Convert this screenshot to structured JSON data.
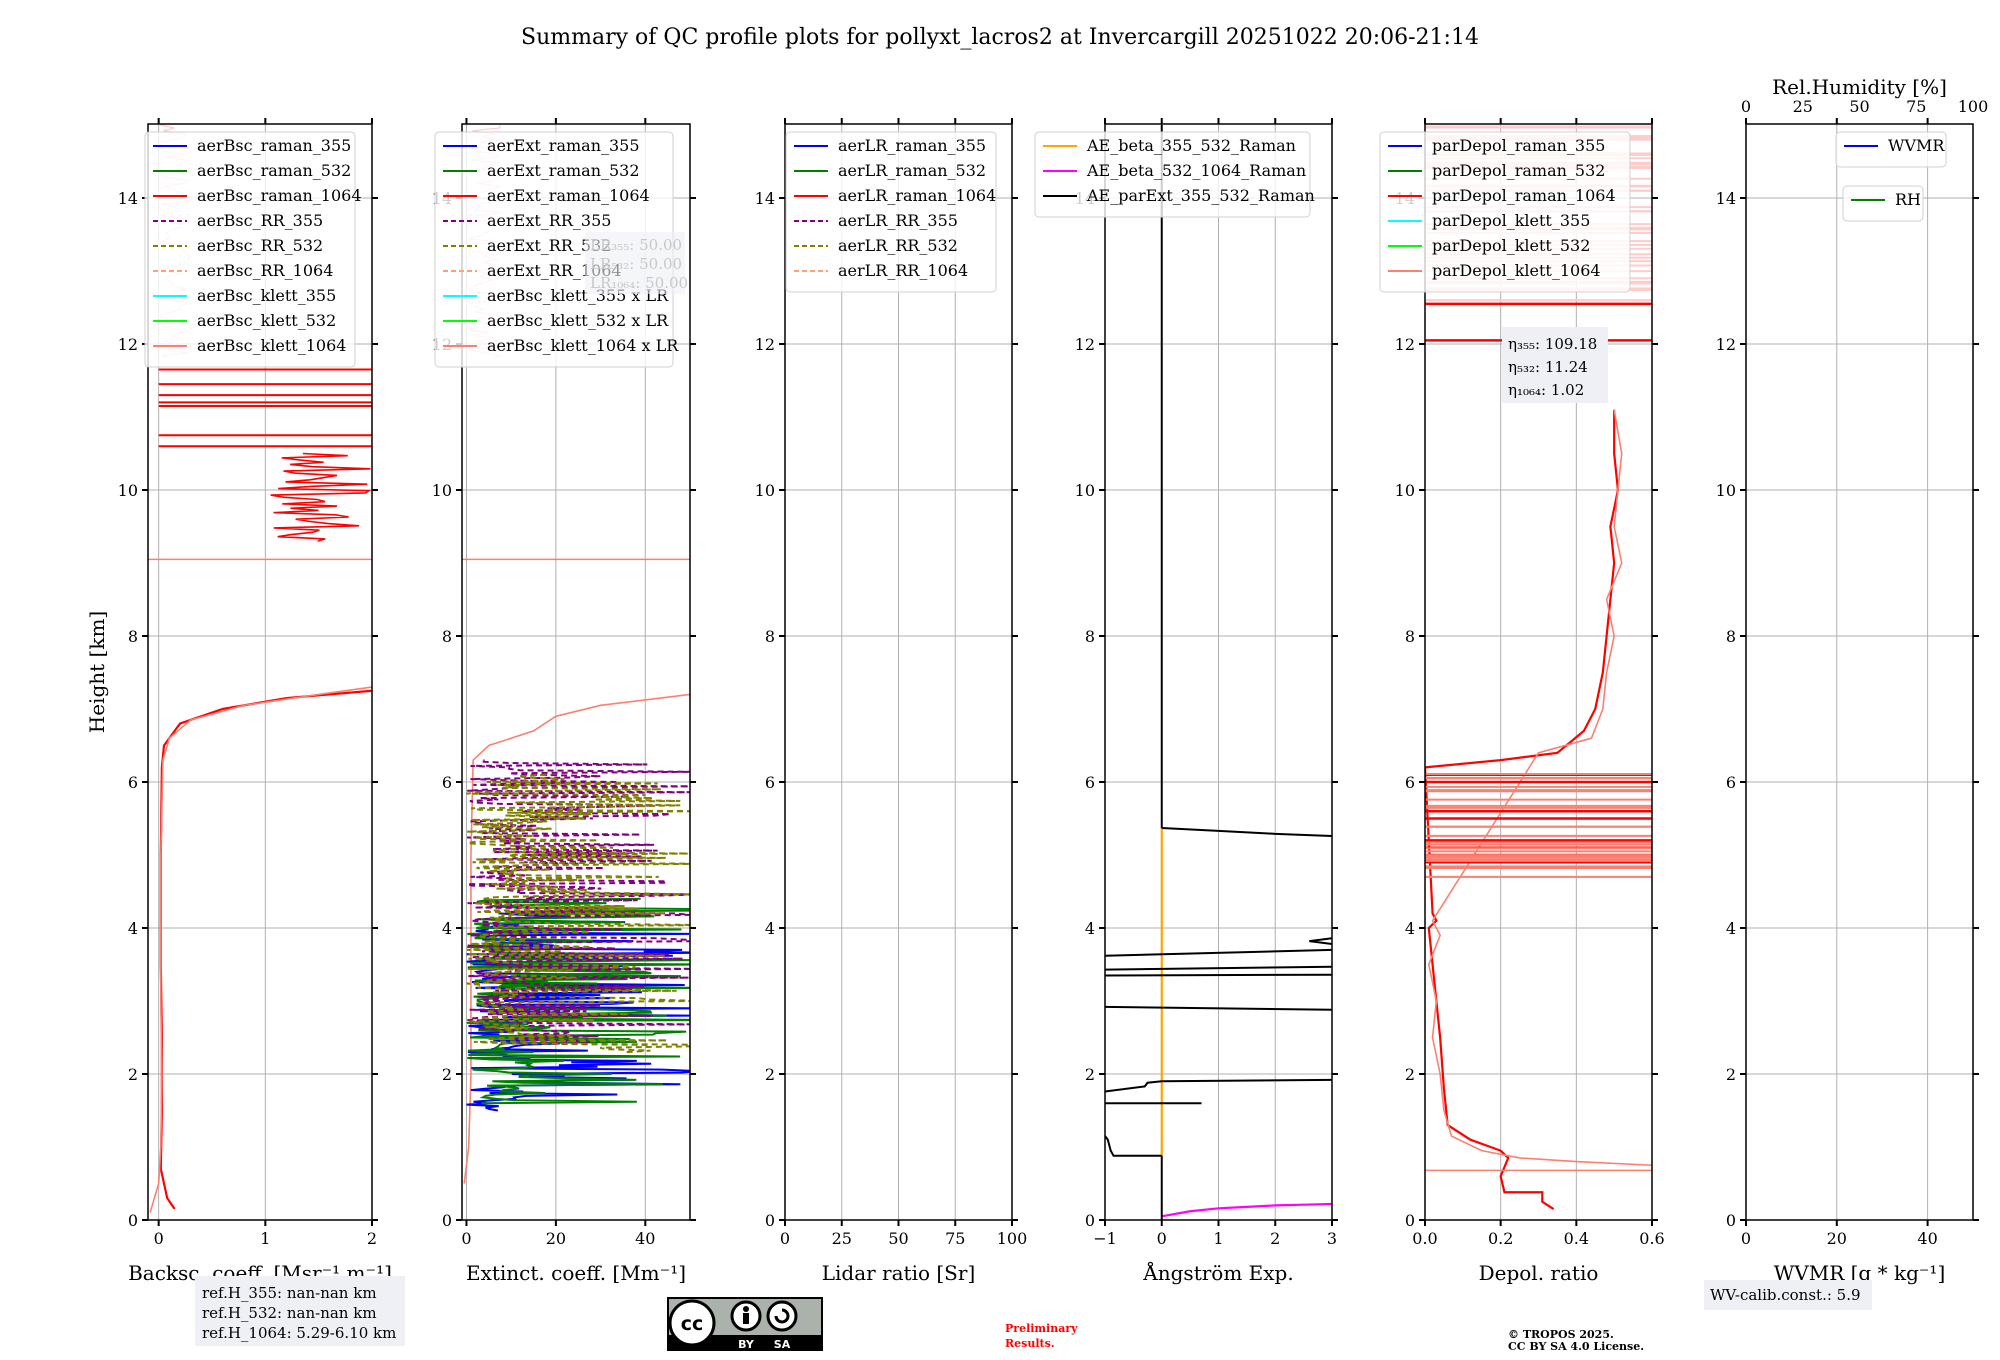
{
  "figure": {
    "title": "Summary of QC profile plots for pollyxt_lacros2 at Invercargill 20251022 20:06-21:14",
    "ylabel": "Height [km]"
  },
  "chart_data": [
    {
      "type": "line",
      "id": "backscatter",
      "xlabel": "Backsc. coeff. [Msr⁻¹ m⁻¹]",
      "ylabel": "Height [km]",
      "xlim": [
        -0.1,
        2
      ],
      "ylim": [
        0,
        15
      ],
      "xticks": [
        0,
        1,
        2
      ],
      "yticks": [
        0,
        2,
        4,
        6,
        8,
        10,
        12,
        14
      ],
      "grid": true,
      "legend_position": "top-left",
      "legend": [
        {
          "label": "aerBsc_raman_355",
          "color": "#0000ff",
          "dash": false
        },
        {
          "label": "aerBsc_raman_532",
          "color": "#008000",
          "dash": false
        },
        {
          "label": "aerBsc_raman_1064",
          "color": "#ff0000",
          "dash": false
        },
        {
          "label": "aerBsc_RR_355",
          "color": "#800080",
          "dash": true
        },
        {
          "label": "aerBsc_RR_532",
          "color": "#808000",
          "dash": true
        },
        {
          "label": "aerBsc_RR_1064",
          "color": "#ffa07a",
          "dash": true
        },
        {
          "label": "aerBsc_klett_355",
          "color": "#00ffff",
          "dash": false
        },
        {
          "label": "aerBsc_klett_532",
          "color": "#00ff00",
          "dash": false
        },
        {
          "label": "aerBsc_klett_1064",
          "color": "#fa8072",
          "dash": false
        }
      ],
      "series": [
        {
          "name": "aerBsc_raman_1064",
          "color": "#ff0000",
          "x": [
            0.15,
            0.08,
            0.02,
            0.03,
            0.03,
            0.02,
            0.02,
            0.02,
            0.03,
            0.05,
            0.2,
            0.6,
            1.2,
            2.0
          ],
          "y": [
            0.15,
            0.3,
            0.7,
            1.5,
            2.5,
            3.5,
            4.2,
            5.0,
            6.2,
            6.5,
            6.8,
            7.0,
            7.15,
            7.25
          ]
        },
        {
          "name": "aerBsc_klett_1064",
          "color": "#fa8072",
          "x": [
            -0.08,
            0.0,
            0.02,
            0.03,
            0.02,
            0.02,
            0.04,
            0.1,
            0.3,
            0.8,
            1.5,
            2.0
          ],
          "y": [
            0.1,
            0.5,
            1.0,
            2.0,
            3.0,
            5.0,
            6.3,
            6.6,
            6.85,
            7.05,
            7.2,
            7.3
          ]
        }
      ]
    },
    {
      "type": "line",
      "id": "extinction",
      "xlabel": "Extinct. coeff. [Mm⁻¹]",
      "xlim": [
        -1,
        50
      ],
      "ylim": [
        0,
        15
      ],
      "xticks": [
        0,
        20,
        40
      ],
      "yticks": [
        0,
        2,
        4,
        6,
        8,
        10,
        12,
        14
      ],
      "grid": true,
      "legend_position": "top-left",
      "legend": [
        {
          "label": "aerExt_raman_355",
          "color": "#0000ff",
          "dash": false
        },
        {
          "label": "aerExt_raman_532",
          "color": "#008000",
          "dash": false
        },
        {
          "label": "aerExt_raman_1064",
          "color": "#ff0000",
          "dash": false
        },
        {
          "label": "aerExt_RR_355",
          "color": "#800080",
          "dash": true
        },
        {
          "label": "aerExt_RR_532",
          "color": "#808000",
          "dash": true
        },
        {
          "label": "aerExt_RR_1064",
          "color": "#ffa07a",
          "dash": true
        },
        {
          "label": "aerBsc_klett_355 x LR",
          "color": "#00ffff",
          "dash": false
        },
        {
          "label": "aerBsc_klett_532 x LR",
          "color": "#00ff00",
          "dash": false
        },
        {
          "label": "aerBsc_klett_1064 x LR",
          "color": "#fa8072",
          "dash": false
        }
      ],
      "lr_annotation": [
        "LR₃₅₅: 50.00",
        "LR₅₃₂: 50.00",
        "LR₁₀₆₄: 50.00"
      ],
      "series": [
        {
          "name": "aerBsc_klett_1064 x LR",
          "color": "#fa8072",
          "x": [
            -0.5,
            0.5,
            1,
            1,
            1,
            1,
            1.5,
            5,
            15,
            20,
            30,
            50
          ],
          "y": [
            0.5,
            1.0,
            2.0,
            3.0,
            4.0,
            5.0,
            6.3,
            6.5,
            6.7,
            6.9,
            7.05,
            7.2
          ]
        },
        {
          "name": "aerExt_raman_355",
          "color": "#0000ff",
          "range_km": [
            1.5,
            4.2
          ],
          "max_value": 48
        },
        {
          "name": "aerExt_raman_532",
          "color": "#008000",
          "range_km": [
            1.6,
            4.4
          ],
          "max_value": 50
        },
        {
          "name": "aerExt_RR_355",
          "color": "#800080",
          "range_km": [
            2.4,
            6.3
          ],
          "max_value": 50
        },
        {
          "name": "aerExt_RR_532",
          "color": "#808000",
          "range_km": [
            2.3,
            6.1
          ],
          "max_value": 50
        }
      ]
    },
    {
      "type": "line",
      "id": "lidar_ratio",
      "xlabel": "Lidar ratio [Sr]",
      "xlim": [
        0,
        100
      ],
      "ylim": [
        0,
        15
      ],
      "xticks": [
        0,
        25,
        50,
        75,
        100
      ],
      "yticks": [
        0,
        2,
        4,
        6,
        8,
        10,
        12,
        14
      ],
      "grid": true,
      "legend_position": "top-left",
      "legend": [
        {
          "label": "aerLR_raman_355",
          "color": "#0000ff",
          "dash": false
        },
        {
          "label": "aerLR_raman_532",
          "color": "#008000",
          "dash": false
        },
        {
          "label": "aerLR_raman_1064",
          "color": "#ff0000",
          "dash": false
        },
        {
          "label": "aerLR_RR_355",
          "color": "#800080",
          "dash": true
        },
        {
          "label": "aerLR_RR_532",
          "color": "#808000",
          "dash": true
        },
        {
          "label": "aerLR_RR_1064",
          "color": "#ffa07a",
          "dash": true
        }
      ],
      "series": []
    },
    {
      "type": "line",
      "id": "angstrom",
      "xlabel": "Ångström Exp.",
      "xlim": [
        -1,
        3
      ],
      "ylim": [
        0,
        15
      ],
      "xticks": [
        -1,
        0,
        1,
        2,
        3
      ],
      "xticklabels": [
        "−1",
        "0",
        "1",
        "2",
        "3"
      ],
      "yticks": [
        0,
        2,
        4,
        6,
        8,
        10,
        12,
        14
      ],
      "grid": true,
      "legend_position": "top-right",
      "legend": [
        {
          "label": "AE_beta_355_532_Raman",
          "color": "#ffa500",
          "dash": false
        },
        {
          "label": "AE_beta_532_1064_Raman",
          "color": "#ff00ff",
          "dash": false
        },
        {
          "label": "AE_parExt_355_532_Raman",
          "color": "#000000",
          "dash": false
        }
      ],
      "series": [
        {
          "name": "AE_beta_355_532_Raman",
          "color": "#ffa500",
          "x": [
            0,
            0
          ],
          "y": [
            0.88,
            5.37
          ]
        },
        {
          "name": "AE_beta_532_1064_Raman",
          "color": "#ff00ff",
          "x": [
            0,
            0.5,
            1,
            1.5,
            2,
            2.5,
            3
          ],
          "y": [
            0.05,
            0.12,
            0.16,
            0.18,
            0.2,
            0.21,
            0.22
          ]
        },
        {
          "name": "AE_parExt_355_532_Raman",
          "color": "#000000",
          "segments": [
            {
              "x": [
                0,
                0
              ],
              "y": [
                0.0,
                0.88
              ]
            },
            {
              "x": [
                0,
                -0.85,
                -0.9,
                -0.95,
                -1
              ],
              "y": [
                0.88,
                0.88,
                0.95,
                1.1,
                1.15
              ]
            },
            {
              "x": [
                -1,
                0.7
              ],
              "y": [
                1.6,
                1.6
              ]
            },
            {
              "x": [
                -1,
                -0.3,
                -0.25,
                0,
                3
              ],
              "y": [
                1.76,
                1.83,
                1.88,
                1.9,
                1.92
              ]
            },
            {
              "x": [
                -1,
                3
              ],
              "y": [
                2.92,
                2.88
              ]
            },
            {
              "x": [
                -1,
                3
              ],
              "y": [
                3.35,
                3.36
              ]
            },
            {
              "x": [
                -1,
                3
              ],
              "y": [
                3.43,
                3.47
              ]
            },
            {
              "x": [
                -1,
                3
              ],
              "y": [
                3.62,
                3.7
              ]
            },
            {
              "x": [
                3,
                2.6,
                3
              ],
              "y": [
                3.78,
                3.82,
                3.86
              ]
            },
            {
              "x": [
                0,
                0
              ],
              "y": [
                5.37,
                15
              ]
            },
            {
              "x": [
                0,
                1,
                2,
                3
              ],
              "y": [
                5.37,
                5.33,
                5.29,
                5.26
              ]
            }
          ]
        }
      ]
    },
    {
      "type": "line",
      "id": "depol",
      "xlabel": "Depol. ratio",
      "xlim": [
        0,
        0.6
      ],
      "ylim": [
        0,
        15
      ],
      "xticks": [
        0,
        0.2,
        0.4,
        0.6
      ],
      "xticklabels": [
        "0.0",
        "0.2",
        "0.4",
        "0.6"
      ],
      "yticks": [
        0,
        2,
        4,
        6,
        8,
        10,
        12,
        14
      ],
      "grid": true,
      "legend_position": "top-left",
      "legend": [
        {
          "label": "parDepol_raman_355",
          "color": "#0000ff",
          "dash": false
        },
        {
          "label": "parDepol_raman_532",
          "color": "#008000",
          "dash": false
        },
        {
          "label": "parDepol_raman_1064",
          "color": "#ff0000",
          "dash": false
        },
        {
          "label": "parDepol_klett_355",
          "color": "#00ffff",
          "dash": false
        },
        {
          "label": "parDepol_klett_532",
          "color": "#00ff00",
          "dash": false
        },
        {
          "label": "parDepol_klett_1064",
          "color": "#fa8072",
          "dash": false
        }
      ],
      "eta_annotation": [
        "η₃₅₅: 109.18",
        "η₅₃₂: 11.24",
        "η₁₀₆₄: 1.02"
      ],
      "series": [
        {
          "name": "parDepol_raman_1064",
          "color": "#ff0000",
          "x": [
            0.34,
            0.31,
            0.31,
            0.21,
            0.2,
            0.22,
            0.2,
            0.12,
            0.06,
            0.05,
            0.04,
            0.03,
            0.02,
            0.01,
            0.03,
            0.02,
            0.0,
            0.2,
            0.35,
            0.42,
            0.45,
            0.47,
            0.48,
            0.49,
            0.5,
            0.49,
            0.51,
            0.5,
            0.5
          ],
          "y": [
            0.15,
            0.25,
            0.38,
            0.38,
            0.6,
            0.85,
            0.95,
            1.1,
            1.3,
            1.8,
            2.5,
            3.0,
            3.5,
            4.0,
            4.1,
            4.2,
            6.2,
            6.3,
            6.4,
            6.7,
            7.0,
            7.5,
            8.0,
            8.5,
            9.0,
            9.5,
            10.0,
            10.5,
            11.1
          ]
        },
        {
          "name": "parDepol_klett_1064",
          "color": "#fa8072",
          "x": [
            0.6,
            0.4,
            0.25,
            0.15,
            0.07,
            0.05,
            0.04,
            0.02,
            0.03,
            0.01,
            0.04,
            0.02,
            0.3,
            0.44,
            0.47,
            0.48,
            0.5,
            0.48,
            0.52,
            0.5,
            0.52,
            0.5
          ],
          "y": [
            0.75,
            0.8,
            0.85,
            0.95,
            1.15,
            1.5,
            2.0,
            2.5,
            3.0,
            3.5,
            3.9,
            4.1,
            6.4,
            6.6,
            7.0,
            7.5,
            8.0,
            8.5,
            9.0,
            9.5,
            10.5,
            11.1
          ]
        }
      ]
    },
    {
      "type": "line",
      "id": "wvmr",
      "xlabel": "WVMR [g * kg⁻¹]",
      "xlim": [
        0,
        50
      ],
      "ylim": [
        0,
        15
      ],
      "xticks": [
        0,
        20,
        40
      ],
      "yticks": [
        0,
        2,
        4,
        6,
        8,
        10,
        12,
        14
      ],
      "top_xlabel": "Rel.Humidity [%]",
      "top_xlim": [
        0,
        100
      ],
      "top_xticks": [
        0,
        25,
        50,
        75,
        100
      ],
      "grid": true,
      "legend_position": "top-right",
      "legend": [
        {
          "label": "WVMR",
          "color": "#0000ff",
          "dash": false
        },
        {
          "label": "RH",
          "color": "#008000",
          "dash": false
        }
      ],
      "series": []
    }
  ],
  "footer": {
    "ref_heights": [
      "ref.H_355: nan-nan km",
      "ref.H_532: nan-nan km",
      "ref.H_1064: 5.29-6.10 km"
    ],
    "license_badge": {
      "left": "BY",
      "right": "SA",
      "icon": "cc-by-sa-icon"
    },
    "preliminary": [
      "Preliminary",
      "Results."
    ],
    "preliminary_color": "#ff0000",
    "copyright": [
      "© TROPOS 2025.",
      "CC BY SA 4.0 License."
    ],
    "wv_calib": "WV-calib.const.: 5.9"
  }
}
